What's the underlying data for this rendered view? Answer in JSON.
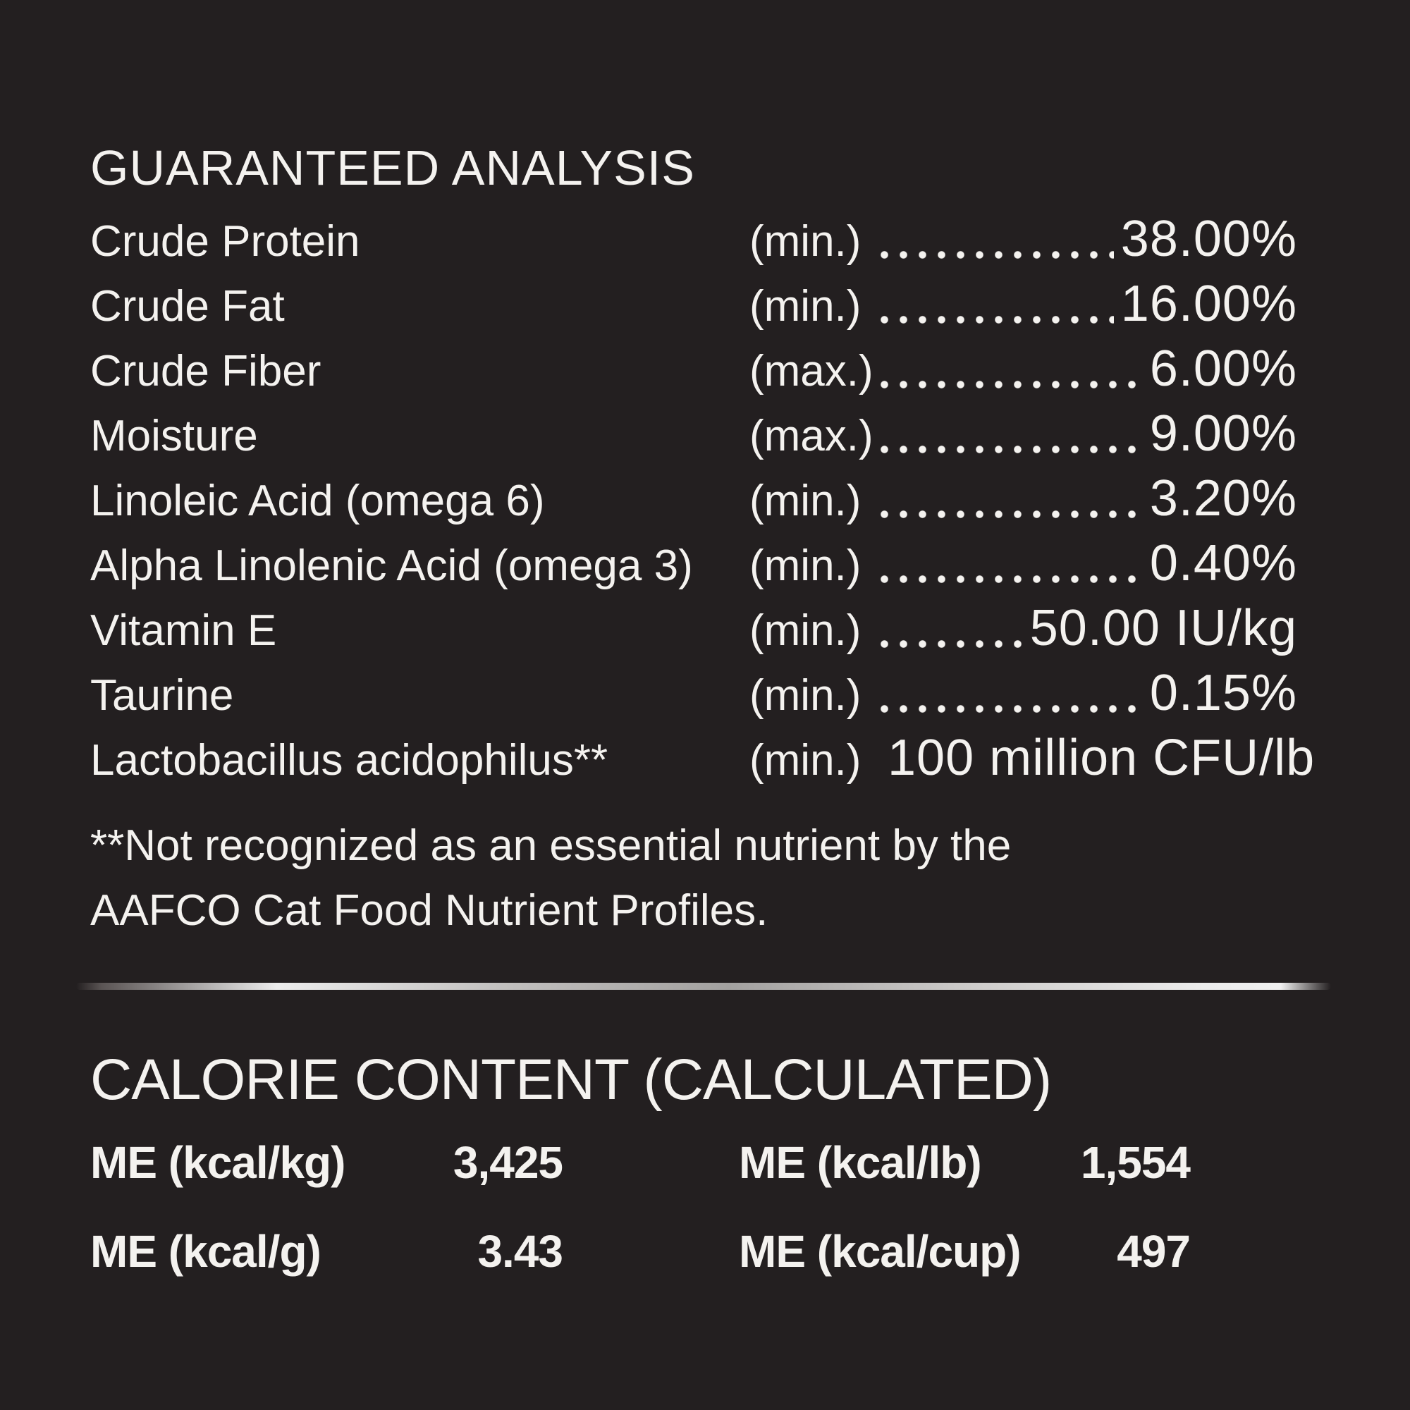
{
  "colors": {
    "background": "#231f20",
    "ink": "#f4f2ef",
    "divider_silver": "#c9c7c6"
  },
  "guaranteed_analysis": {
    "title": "GUARANTEED ANALYSIS",
    "rows": [
      {
        "label": "Crude Protein",
        "basis": "(min.)",
        "value": "38.00%"
      },
      {
        "label": "Crude Fat",
        "basis": "(min.)",
        "value": "16.00%"
      },
      {
        "label": "Crude Fiber",
        "basis": "(max.)",
        "value": "6.00%"
      },
      {
        "label": "Moisture",
        "basis": "(max.)",
        "value": "9.00%"
      },
      {
        "label": "Linoleic Acid (omega 6)",
        "basis": "(min.)",
        "value": "3.20%"
      },
      {
        "label": "Alpha Linolenic Acid (omega 3)",
        "basis": "(min.)",
        "value": "0.40%"
      },
      {
        "label": "Vitamin E",
        "basis": "(min.)",
        "value": "50.00 IU/kg"
      },
      {
        "label": "Taurine",
        "basis": "(min.)",
        "value": "0.15%"
      },
      {
        "label": "Lactobacillus acidophilus**",
        "basis": "(min.)",
        "value": "100 million CFU/lb"
      }
    ],
    "footnote_lines": [
      "**Not recognized as an essential nutrient by the",
      "AAFCO Cat Food Nutrient Profiles."
    ]
  },
  "calorie_content": {
    "title": "CALORIE CONTENT (CALCULATED)",
    "entries": [
      {
        "label": "ME (kcal/kg)",
        "value": "3,425"
      },
      {
        "label": "ME (kcal/lb)",
        "value": "1,554"
      },
      {
        "label": "ME (kcal/g)",
        "value": "3.43"
      },
      {
        "label": "ME (kcal/cup)",
        "value": "497"
      }
    ]
  }
}
